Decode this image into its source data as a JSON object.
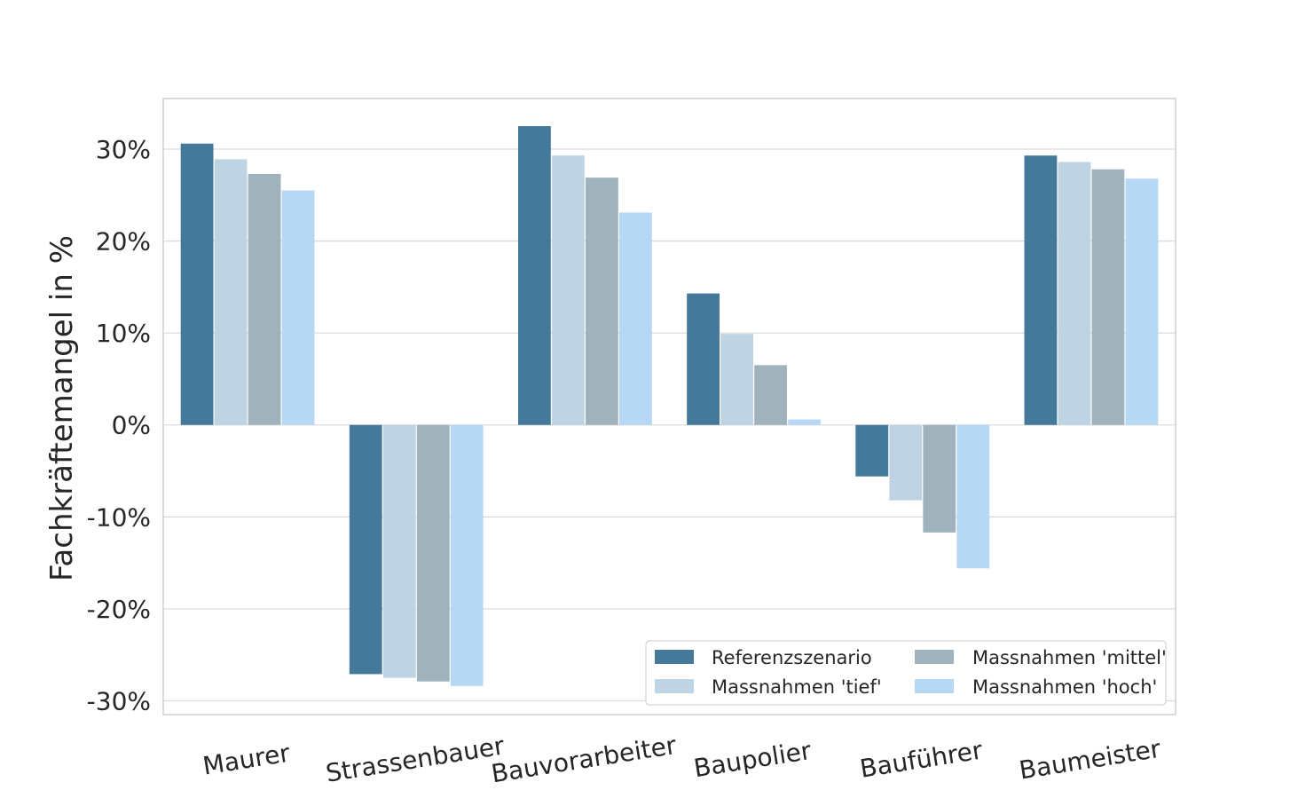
{
  "chart_data": {
    "type": "bar",
    "title": "",
    "xlabel": "",
    "ylabel": "Fachkräftemangel in %",
    "ylim": [
      -31.5,
      35.5
    ],
    "yticks": [
      30,
      20,
      10,
      0,
      -10,
      -20,
      -30
    ],
    "ytick_labels": [
      "30%",
      "20%",
      "10%",
      "0%",
      "-10%",
      "-20%",
      "-30%"
    ],
    "grid": true,
    "legend_position": "lower-right",
    "categories": [
      "Maurer",
      "Strassenbauer",
      "Bauvorarbeiter",
      "Baupolier",
      "Bauführer",
      "Baumeister"
    ],
    "series": [
      {
        "name": "Referenzszenario",
        "color": "#44799a",
        "values": [
          30.6,
          -27.1,
          32.5,
          14.3,
          -5.6,
          29.3
        ]
      },
      {
        "name": "Massnahmen 'tief'",
        "color": "#bfd4e3",
        "values": [
          28.9,
          -27.5,
          29.3,
          9.9,
          -8.2,
          28.6
        ]
      },
      {
        "name": "Massnahmen 'mittel'",
        "color": "#a0b3bd",
        "values": [
          27.3,
          -27.9,
          26.9,
          6.5,
          -11.7,
          27.8
        ]
      },
      {
        "name": "Massnahmen 'hoch'",
        "color": "#b6d8f4",
        "values": [
          25.5,
          -28.4,
          23.1,
          0.6,
          -15.6,
          26.8
        ]
      }
    ]
  }
}
